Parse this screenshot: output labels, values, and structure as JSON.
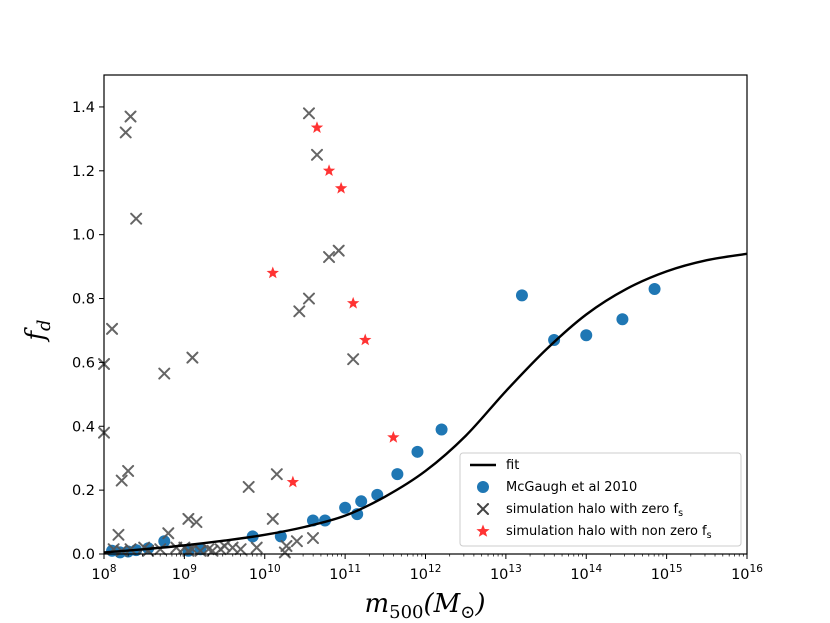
{
  "chart_data": {
    "type": "scatter",
    "title": "",
    "xlabel": "m",
    "xlabel_sub": "500",
    "xlabel_unit": "(M",
    "xlabel_unit_sub": "⊙",
    "xlabel_close": ")",
    "ylabel": "f",
    "ylabel_sub": "d",
    "xscale": "log",
    "xlim_log10": [
      8,
      16
    ],
    "ylim": [
      0.0,
      1.5
    ],
    "x_ticks_exp": [
      "8",
      "9",
      "10",
      "11",
      "12",
      "13",
      "14",
      "15",
      "16"
    ],
    "x_tick_base": "10",
    "y_ticks": [
      "0.0",
      "0.2",
      "0.4",
      "0.6",
      "0.8",
      "1.0",
      "1.2",
      "1.4"
    ],
    "legend_position": "lower-right",
    "legend": [
      "fit",
      "McGaugh et al 2010",
      "simulation halo with zero f",
      "simulation halo with non zero f"
    ],
    "legend_sub": "s",
    "series": [
      {
        "name": "fit",
        "kind": "line",
        "color": "#000000",
        "x_log10": [
          8.0,
          8.5,
          9.0,
          9.5,
          10.0,
          10.5,
          11.0,
          11.5,
          12.0,
          12.5,
          13.0,
          13.5,
          14.0,
          14.5,
          15.0,
          15.5,
          16.0
        ],
        "y": [
          0.005,
          0.015,
          0.027,
          0.042,
          0.06,
          0.085,
          0.12,
          0.18,
          0.26,
          0.37,
          0.51,
          0.64,
          0.75,
          0.83,
          0.885,
          0.92,
          0.94
        ]
      },
      {
        "name": "McGaugh et al 2010",
        "kind": "circle",
        "color": "#1f77b4",
        "x_log10": [
          8.1,
          8.2,
          8.3,
          8.4,
          8.55,
          8.75,
          9.05,
          9.2,
          9.85,
          10.2,
          10.6,
          10.75,
          11.0,
          11.15,
          11.2,
          11.4,
          11.65,
          11.9,
          12.2,
          13.2,
          13.6,
          14.0,
          14.45,
          14.85
        ],
        "y": [
          0.01,
          0.005,
          0.008,
          0.012,
          0.018,
          0.04,
          0.01,
          0.015,
          0.055,
          0.055,
          0.105,
          0.105,
          0.145,
          0.125,
          0.165,
          0.185,
          0.25,
          0.32,
          0.39,
          0.81,
          0.67,
          0.685,
          0.735,
          0.83
        ]
      },
      {
        "name": "simulation halo with zero f_s",
        "kind": "x",
        "color": "#555555",
        "x_log10": [
          8.0,
          8.1,
          8.18,
          8.22,
          8.3,
          8.33,
          8.5,
          8.55,
          8.75,
          8.8,
          8.9,
          9.05,
          9.1,
          9.15,
          9.3,
          9.45,
          9.5,
          9.6,
          9.8,
          10.1,
          10.15,
          10.25,
          10.27,
          10.43,
          10.55,
          10.6,
          10.65,
          10.92,
          8.0,
          8.12,
          8.22,
          8.27,
          8.33,
          8.4,
          8.7,
          9.0,
          9.05,
          9.1,
          9.2,
          9.35,
          9.7,
          9.9,
          10.4,
          10.55,
          10.8,
          11.1
        ],
        "y": [
          0.595,
          0.705,
          0.06,
          0.23,
          0.26,
          0.015,
          0.02,
          0.01,
          0.565,
          0.065,
          0.02,
          0.11,
          0.615,
          0.1,
          0.015,
          0.015,
          0.025,
          0.02,
          0.21,
          0.11,
          0.25,
          0.005,
          0.025,
          0.76,
          0.8,
          0.05,
          1.25,
          0.95,
          0.38,
          0.015,
          0.01,
          1.32,
          1.37,
          1.05,
          0.015,
          0.02,
          0.01,
          0.015,
          0.01,
          0.01,
          0.015,
          0.02,
          0.04,
          1.38,
          0.93,
          0.61
        ],
        "note": "order pairs listed in aligned arrays"
      },
      {
        "name": "simulation halo with non zero f_s",
        "kind": "star",
        "color": "#ff3333",
        "x_log10": [
          10.1,
          10.35,
          10.65,
          10.8,
          10.95,
          11.1,
          11.25,
          11.6
        ],
        "y": [
          0.88,
          0.225,
          1.335,
          1.2,
          1.145,
          0.785,
          0.67,
          0.365
        ]
      }
    ]
  }
}
